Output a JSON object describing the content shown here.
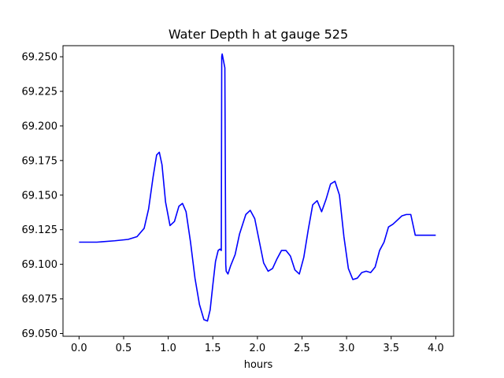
{
  "chart_data": {
    "type": "line",
    "title": "Water Depth h at gauge 525",
    "xlabel": "hours",
    "ylabel": "",
    "xlim": [
      -0.18,
      4.2
    ],
    "ylim": [
      69.048,
      69.258
    ],
    "x_ticks": [
      0.0,
      0.5,
      1.0,
      1.5,
      2.0,
      2.5,
      3.0,
      3.5,
      4.0
    ],
    "x_tick_labels": [
      "0.0",
      "0.5",
      "1.0",
      "1.5",
      "2.0",
      "2.5",
      "3.0",
      "3.5",
      "4.0"
    ],
    "y_ticks": [
      69.05,
      69.075,
      69.1,
      69.125,
      69.15,
      69.175,
      69.2,
      69.225,
      69.25
    ],
    "y_tick_labels": [
      "69.050",
      "69.075",
      "69.100",
      "69.125",
      "69.150",
      "69.175",
      "69.200",
      "69.225",
      "69.250"
    ],
    "grid": false,
    "series": [
      {
        "color": "#0000ff",
        "x": [
          0.0,
          0.2,
          0.4,
          0.55,
          0.65,
          0.73,
          0.78,
          0.83,
          0.87,
          0.9,
          0.93,
          0.97,
          1.02,
          1.07,
          1.12,
          1.16,
          1.2,
          1.25,
          1.3,
          1.35,
          1.4,
          1.44,
          1.47,
          1.5,
          1.53,
          1.56,
          1.58,
          1.595,
          1.6,
          1.605,
          1.62,
          1.635,
          1.645,
          1.65,
          1.67,
          1.7,
          1.75,
          1.8,
          1.87,
          1.92,
          1.97,
          2.02,
          2.07,
          2.12,
          2.17,
          2.22,
          2.27,
          2.32,
          2.37,
          2.42,
          2.47,
          2.52,
          2.57,
          2.62,
          2.67,
          2.72,
          2.77,
          2.82,
          2.87,
          2.92,
          2.97,
          3.02,
          3.07,
          3.12,
          3.17,
          3.22,
          3.27,
          3.32,
          3.37,
          3.42,
          3.47,
          3.52,
          3.57,
          3.62,
          3.67,
          3.72,
          3.77,
          3.82,
          3.87,
          3.92,
          3.96,
          4.0
        ],
        "y": [
          69.116,
          69.116,
          69.117,
          69.118,
          69.12,
          69.126,
          69.14,
          69.163,
          69.179,
          69.181,
          69.172,
          69.145,
          69.128,
          69.131,
          69.142,
          69.144,
          69.138,
          69.116,
          69.09,
          69.071,
          69.06,
          69.059,
          69.067,
          69.085,
          69.102,
          69.11,
          69.111,
          69.11,
          69.25,
          69.252,
          69.247,
          69.242,
          69.1,
          69.095,
          69.093,
          69.099,
          69.107,
          69.122,
          69.136,
          69.139,
          69.133,
          69.117,
          69.101,
          69.095,
          69.097,
          69.104,
          69.11,
          69.11,
          69.106,
          69.096,
          69.093,
          69.105,
          69.125,
          69.143,
          69.146,
          69.138,
          69.147,
          69.158,
          69.16,
          69.15,
          69.12,
          69.097,
          69.089,
          69.09,
          69.094,
          69.095,
          69.094,
          69.098,
          69.11,
          69.116,
          69.127,
          69.129,
          69.132,
          69.135,
          69.136,
          69.136,
          69.121,
          69.121,
          69.121,
          69.121,
          69.121,
          69.121
        ]
      }
    ]
  }
}
